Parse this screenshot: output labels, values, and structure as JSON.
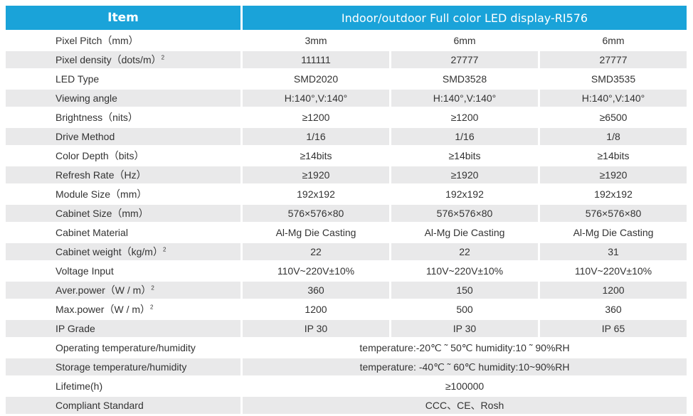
{
  "header": {
    "item": "Item",
    "product": "Indoor/outdoor Full color LED display-RI576"
  },
  "rows": [
    {
      "label": "Pixel Pitch（mm）",
      "sup": "",
      "values": [
        "3mm",
        "6mm",
        "6mm"
      ]
    },
    {
      "label": "Pixel density（dots/m）",
      "sup": "2",
      "values": [
        "111111",
        "27777",
        "27777"
      ]
    },
    {
      "label": "LED Type",
      "sup": "",
      "values": [
        "SMD2020",
        "SMD3528",
        "SMD3535"
      ]
    },
    {
      "label": "Viewing angle",
      "sup": "",
      "values": [
        "H:140°,V:140°",
        "H:140°,V:140°",
        "H:140°,V:140°"
      ]
    },
    {
      "label": "Brightness（nits）",
      "sup": "",
      "values": [
        "≥1200",
        "≥1200",
        "≥6500"
      ]
    },
    {
      "label": "Drive Method",
      "sup": "",
      "values": [
        "1/16",
        "1/16",
        "1/8"
      ]
    },
    {
      "label": "Color Depth（bits）",
      "sup": "",
      "values": [
        "≥14bits",
        "≥14bits",
        "≥14bits"
      ]
    },
    {
      "label": "Refresh Rate（Hz）",
      "sup": "",
      "values": [
        "≥1920",
        "≥1920",
        "≥1920"
      ]
    },
    {
      "label": "Module Size（mm）",
      "sup": "",
      "values": [
        "192x192",
        "192x192",
        "192x192"
      ]
    },
    {
      "label": "Cabinet Size（mm）",
      "sup": "",
      "values": [
        "576×576×80",
        "576×576×80",
        "576×576×80"
      ]
    },
    {
      "label": "Cabinet Material",
      "sup": "",
      "values": [
        "Al-Mg Die Casting",
        "Al-Mg Die Casting",
        "Al-Mg Die Casting"
      ]
    },
    {
      "label": "Cabinet weight（kg/m）",
      "sup": "2",
      "values": [
        "22",
        "22",
        "31"
      ]
    },
    {
      "label": "Voltage Input",
      "sup": "",
      "values": [
        "110V~220V±10%",
        "110V~220V±10%",
        "110V~220V±10%"
      ]
    },
    {
      "label": "Aver.power（W / m）",
      "sup": "2",
      "values": [
        "360",
        "150",
        "1200"
      ]
    },
    {
      "label": "Max.power（W / m）",
      "sup": "2",
      "values": [
        "1200",
        "500",
        "360"
      ]
    },
    {
      "label": "IP Grade",
      "sup": "",
      "values": [
        "IP 30",
        "IP 30",
        "IP 65"
      ]
    }
  ],
  "span_rows": [
    {
      "label": "Operating temperature/humidity",
      "value": "temperature:-20℃ ˜ 50℃ humidity:10 ˜ 90%RH"
    },
    {
      "label": "Storage temperature/humidity",
      "value": "temperature: -40℃ ˜ 60℃ humidity:10~90%RH"
    },
    {
      "label": "Lifetime(h)",
      "value": "≥100000"
    },
    {
      "label": "Compliant Standard",
      "value": "CCC、CE、Rosh"
    }
  ],
  "colors": {
    "header_bg": "#1aa3d9",
    "row_shade": "#e9e9ea",
    "text": "#333333"
  }
}
